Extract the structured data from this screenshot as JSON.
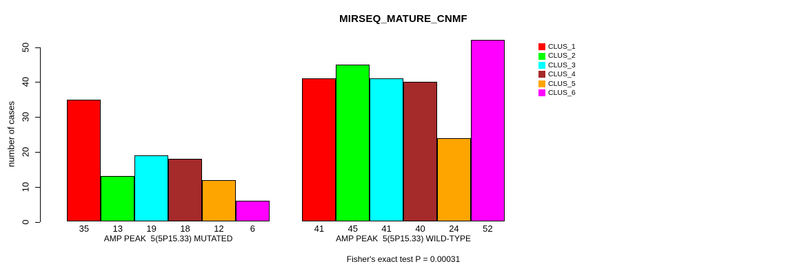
{
  "title": "MIRSEQ_MATURE_CNMF",
  "footer": "Fisher's exact test P = 0.00031",
  "chart_data": {
    "type": "bar",
    "title": "MIRSEQ_MATURE_CNMF",
    "xlabel": "",
    "ylabel": "number of cases",
    "ylim": [
      0,
      50
    ],
    "yticks": [
      0,
      10,
      20,
      30,
      40,
      50
    ],
    "grid": false,
    "legend_position": "right",
    "bar_value_labels_shown": true,
    "categories": [
      "AMP PEAK  5(5P15.33) MUTATED",
      "AMP PEAK  5(5P15.33) WILD-TYPE"
    ],
    "series": [
      {
        "name": "CLUS_1",
        "color": "#FF0000",
        "values": [
          35,
          41
        ]
      },
      {
        "name": "CLUS_2",
        "color": "#00FF00",
        "values": [
          13,
          45
        ]
      },
      {
        "name": "CLUS_3",
        "color": "#00FFFF",
        "values": [
          19,
          41
        ]
      },
      {
        "name": "CLUS_4",
        "color": "#A52A2A",
        "values": [
          18,
          40
        ]
      },
      {
        "name": "CLUS_5",
        "color": "#FFA500",
        "values": [
          12,
          24
        ]
      },
      {
        "name": "CLUS_6",
        "color": "#FF00FF",
        "values": [
          6,
          52
        ]
      }
    ],
    "annotation": "Fisher's exact test P = 0.00031"
  }
}
